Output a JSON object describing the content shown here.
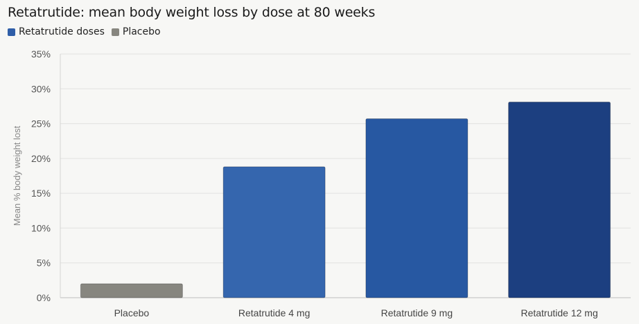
{
  "chart_data": {
    "type": "bar",
    "title": "Retatrutide: mean body weight loss by dose at 80 weeks",
    "ylabel": "Mean % body weight lost",
    "xlabel": "",
    "categories": [
      "Placebo",
      "Retatrutide 4 mg",
      "Retatrutide 9 mg",
      "Retatrutide 12 mg"
    ],
    "values": [
      2.0,
      18.8,
      25.7,
      28.1
    ],
    "bar_colors": [
      "#87867f",
      "#3566ae",
      "#2758a2",
      "#1c3f80"
    ],
    "ylim": [
      0,
      35
    ],
    "yticks": [
      0,
      5,
      10,
      15,
      20,
      25,
      30,
      35
    ],
    "ytick_labels": [
      "0%",
      "5%",
      "10%",
      "15%",
      "20%",
      "25%",
      "30%",
      "35%"
    ],
    "grid": true,
    "legend_position": "top-left",
    "legend": [
      {
        "label": "Retatrutide doses",
        "color": "#2f5ea8"
      },
      {
        "label": "Placebo",
        "color": "#87867f"
      }
    ]
  }
}
